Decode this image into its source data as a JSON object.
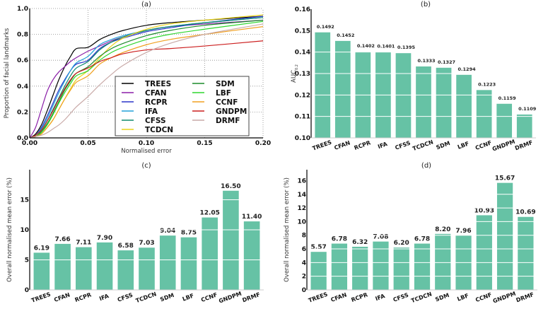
{
  "chart_data": [
    {
      "id": "a",
      "type": "line",
      "title": "(a)",
      "xlabel": "Normalised error",
      "ylabel": "Proportion of facial landmarks",
      "xlim": [
        0,
        0.2
      ],
      "ylim": [
        0,
        1.0
      ],
      "xticks": [
        "0.00",
        "0.05",
        "0.10",
        "0.15",
        "0.20"
      ],
      "yticks": [
        "0.0",
        "0.2",
        "0.4",
        "0.6",
        "0.8",
        "1.0"
      ],
      "grid": true,
      "legend_position": "bottom-right",
      "x": [
        0,
        0.005,
        0.01,
        0.015,
        0.02,
        0.025,
        0.03,
        0.035,
        0.04,
        0.05,
        0.06,
        0.07,
        0.08,
        0.1,
        0.12,
        0.15,
        0.2
      ],
      "series": [
        {
          "name": "TREES",
          "color": "#000000",
          "values": [
            0,
            0.03,
            0.1,
            0.21,
            0.33,
            0.45,
            0.55,
            0.63,
            0.69,
            0.7,
            0.76,
            0.8,
            0.83,
            0.87,
            0.89,
            0.91,
            0.94
          ]
        },
        {
          "name": "CFAN",
          "color": "#8b1fa8",
          "values": [
            0,
            0.08,
            0.22,
            0.36,
            0.45,
            0.51,
            0.55,
            0.59,
            0.62,
            0.67,
            0.71,
            0.75,
            0.78,
            0.83,
            0.86,
            0.88,
            0.91
          ]
        },
        {
          "name": "RCPR",
          "color": "#2c35c9",
          "values": [
            0,
            0.02,
            0.08,
            0.17,
            0.27,
            0.37,
            0.45,
            0.52,
            0.57,
            0.6,
            0.69,
            0.74,
            0.77,
            0.82,
            0.85,
            0.89,
            0.94
          ]
        },
        {
          "name": "IFA",
          "color": "#22a0d8",
          "values": [
            0,
            0.02,
            0.07,
            0.15,
            0.25,
            0.35,
            0.44,
            0.52,
            0.58,
            0.63,
            0.72,
            0.76,
            0.79,
            0.83,
            0.86,
            0.89,
            0.93
          ]
        },
        {
          "name": "CFSS",
          "color": "#0f8a6e",
          "values": [
            0,
            0.02,
            0.06,
            0.13,
            0.22,
            0.31,
            0.4,
            0.48,
            0.54,
            0.59,
            0.68,
            0.74,
            0.78,
            0.83,
            0.86,
            0.89,
            0.93
          ]
        },
        {
          "name": "TCDCN",
          "color": "#e8d31a",
          "values": [
            0,
            0.01,
            0.03,
            0.08,
            0.14,
            0.22,
            0.3,
            0.38,
            0.45,
            0.52,
            0.62,
            0.71,
            0.77,
            0.84,
            0.88,
            0.91,
            0.95
          ]
        },
        {
          "name": "SDM",
          "color": "#1c8c2a",
          "values": [
            0,
            0.01,
            0.05,
            0.11,
            0.19,
            0.28,
            0.37,
            0.44,
            0.5,
            0.55,
            0.63,
            0.69,
            0.73,
            0.79,
            0.83,
            0.87,
            0.91
          ]
        },
        {
          "name": "LBF",
          "color": "#2ed62e",
          "values": [
            0,
            0.01,
            0.04,
            0.1,
            0.18,
            0.27,
            0.35,
            0.42,
            0.48,
            0.52,
            0.6,
            0.66,
            0.7,
            0.76,
            0.8,
            0.84,
            0.9
          ]
        },
        {
          "name": "CCNF",
          "color": "#f0a020",
          "values": [
            0,
            0.01,
            0.03,
            0.08,
            0.14,
            0.22,
            0.3,
            0.37,
            0.43,
            0.48,
            0.57,
            0.62,
            0.66,
            0.72,
            0.76,
            0.8,
            0.86
          ]
        },
        {
          "name": "GNDPM",
          "color": "#cc1f1f",
          "values": [
            0,
            0.02,
            0.06,
            0.13,
            0.21,
            0.3,
            0.38,
            0.45,
            0.5,
            0.54,
            0.59,
            0.62,
            0.65,
            0.68,
            0.69,
            0.71,
            0.75
          ]
        },
        {
          "name": "DRMF",
          "color": "#c9aaa8",
          "values": [
            0,
            0.01,
            0.02,
            0.04,
            0.07,
            0.1,
            0.14,
            0.19,
            0.24,
            0.32,
            0.41,
            0.49,
            0.56,
            0.66,
            0.73,
            0.8,
            0.88
          ]
        }
      ]
    },
    {
      "id": "b",
      "type": "bar",
      "title": "(b)",
      "xlabel": "",
      "ylabel": "AUC",
      "ylabel_subscript": "0.2",
      "ylim": [
        0.1,
        0.16
      ],
      "yticks": [
        "0.10",
        "0.11",
        "0.12",
        "0.13",
        "0.14",
        "0.15",
        "0.16"
      ],
      "categories": [
        "TREES",
        "CFAN",
        "RCPR",
        "IFA",
        "CFSS",
        "TCDCN",
        "SDM",
        "LBF",
        "CCNF",
        "GNDPM",
        "DRMF"
      ],
      "values": [
        0.1492,
        0.1452,
        0.1402,
        0.1401,
        0.1395,
        0.1333,
        0.1327,
        0.1294,
        0.1223,
        0.1159,
        0.1109
      ],
      "labels": [
        "0.1492",
        "0.1452",
        "0.1402",
        "0.1401",
        "0.1395",
        "0.1333",
        "0.1327",
        "0.1294",
        "0.1223",
        "0.1159",
        "0.1109"
      ],
      "color": "#66c2a5"
    },
    {
      "id": "c",
      "type": "bar",
      "title": "(c)",
      "xlabel": "",
      "ylabel": "Overall normalised mean error (%)",
      "ylim": [
        0,
        20
      ],
      "yticks": [
        "0",
        "5",
        "10",
        "15"
      ],
      "categories": [
        "TREES",
        "CFAN",
        "RCPR",
        "IFA",
        "CFSS",
        "TCDCN",
        "SDM",
        "LBF",
        "CCNF",
        "GNDPM",
        "DRMF"
      ],
      "values": [
        6.19,
        7.66,
        7.11,
        7.9,
        6.58,
        7.03,
        9.04,
        8.75,
        12.05,
        16.5,
        11.4
      ],
      "labels": [
        "6.19",
        "7.66",
        "7.11",
        "7.90",
        "6.58",
        "7.03",
        "9.04",
        "8.75",
        "12.05",
        "16.50",
        "11.40"
      ],
      "color": "#66c2a5"
    },
    {
      "id": "d",
      "type": "bar",
      "title": "(d)",
      "xlabel": "",
      "ylabel": "Overall normalised mean error (%)",
      "ylim": [
        0,
        17.6
      ],
      "yticks": [
        "0",
        "2",
        "4",
        "6",
        "8",
        "10",
        "12",
        "14",
        "16"
      ],
      "categories": [
        "TREES",
        "CFAN",
        "RCPR",
        "IFA",
        "CFSS",
        "TCDCN",
        "SDM",
        "LBF",
        "CCNF",
        "GNDPM",
        "DRMF"
      ],
      "values": [
        5.57,
        6.78,
        6.32,
        7.08,
        6.2,
        6.78,
        8.2,
        7.96,
        10.93,
        15.67,
        10.69
      ],
      "labels": [
        "5.57",
        "6.78",
        "6.32",
        "7.08",
        "6.20",
        "6.78",
        "8.20",
        "7.96",
        "10.93",
        "15.67",
        "10.69"
      ],
      "color": "#66c2a5"
    }
  ]
}
